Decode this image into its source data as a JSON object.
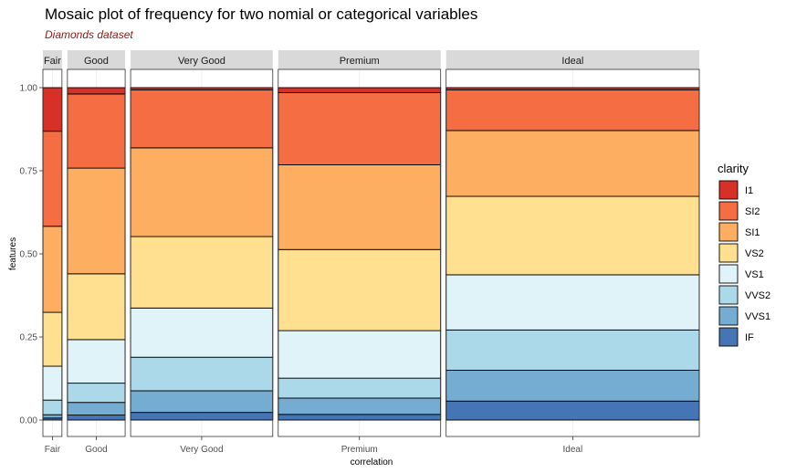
{
  "chart_data": {
    "type": "mosaic",
    "title": "Mosaic plot of frequency for two nomial or categorical variables",
    "subtitle": "Diamonds dataset",
    "xlabel": "correlation",
    "ylabel": "features",
    "ylim": [
      0,
      1
    ],
    "y_ticks": [
      "0.00",
      "0.25",
      "0.50",
      "0.75",
      "1.00"
    ],
    "y_tick_values": [
      0,
      0.25,
      0.5,
      0.75,
      1.0
    ],
    "legend_title": "clarity",
    "legend_position": "right",
    "grid": true,
    "series": [
      {
        "name": "I1",
        "color": "#d73027"
      },
      {
        "name": "SI2",
        "color": "#f46d43"
      },
      {
        "name": "SI1",
        "color": "#fdae61"
      },
      {
        "name": "VS2",
        "color": "#fee090"
      },
      {
        "name": "VS1",
        "color": "#e0f3f8"
      },
      {
        "name": "VVS2",
        "color": "#abd9e9"
      },
      {
        "name": "VVS1",
        "color": "#74add1"
      },
      {
        "name": "IF",
        "color": "#4575b4"
      }
    ],
    "categories": [
      {
        "name": "Fair",
        "width_share": 0.03,
        "stack_tops": {
          "I1": 1.0,
          "SI2": 0.869,
          "SI1": 0.583,
          "VS2": 0.324,
          "VS1": 0.162,
          "VVS2": 0.06,
          "VVS1": 0.016,
          "IF": 0.006
        }
      },
      {
        "name": "Good",
        "width_share": 0.091,
        "stack_tops": {
          "I1": 1.0,
          "SI2": 0.981,
          "SI1": 0.758,
          "VS2": 0.44,
          "VS1": 0.242,
          "VVS2": 0.111,
          "VVS1": 0.053,
          "IF": 0.015
        }
      },
      {
        "name": "Very Good",
        "width_share": 0.224,
        "stack_tops": {
          "I1": 1.0,
          "SI2": 0.993,
          "SI1": 0.819,
          "VS2": 0.552,
          "VS1": 0.337,
          "VVS2": 0.189,
          "VVS1": 0.088,
          "IF": 0.023
        }
      },
      {
        "name": "Premium",
        "width_share": 0.256,
        "stack_tops": {
          "I1": 1.0,
          "SI2": 0.985,
          "SI1": 0.768,
          "VS2": 0.513,
          "VS1": 0.269,
          "VVS2": 0.126,
          "VVS1": 0.066,
          "IF": 0.017
        }
      },
      {
        "name": "Ideal",
        "width_share": 0.399,
        "stack_tops": {
          "I1": 1.0,
          "SI2": 0.993,
          "SI1": 0.871,
          "VS2": 0.673,
          "VS1": 0.437,
          "VVS2": 0.271,
          "VVS1": 0.15,
          "IF": 0.057
        }
      }
    ]
  }
}
